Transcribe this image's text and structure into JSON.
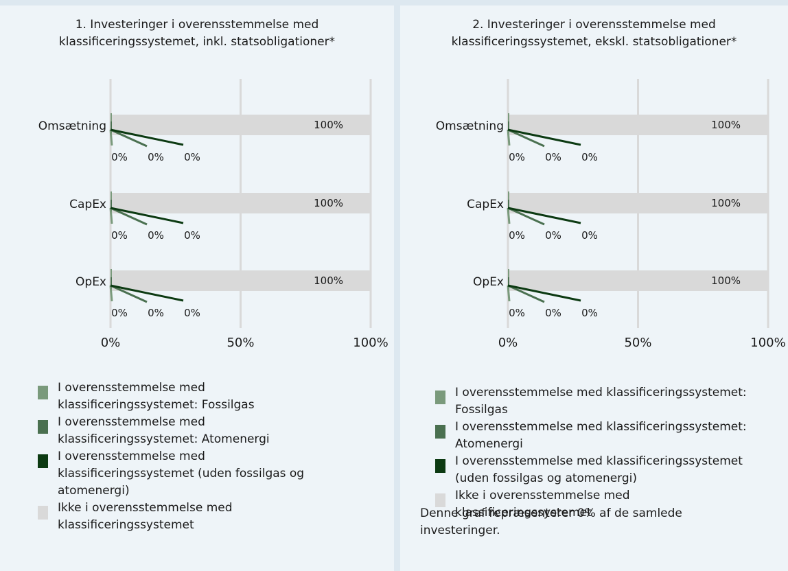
{
  "colors": {
    "fossil_gas": "#7a9a7c",
    "nuclear": "#4a7050",
    "aligned_excl": "#0c3a12",
    "not_aligned": "#d9d9d9",
    "grid": "#d9d9d9"
  },
  "chart_data": [
    {
      "type": "bar",
      "orientation": "horizontal",
      "title_lines": [
        "1. Investeringer i overensstemmelse med",
        "klassificeringssystemet, inkl. statsobligationer*"
      ],
      "categories": [
        "Omsætning",
        "CapEx",
        "OpEx"
      ],
      "series": [
        {
          "name": "I overensstemmelse med klassificeringssystemet: Fossilgas",
          "values": [
            0,
            0,
            0
          ],
          "labels": [
            "0%",
            "0%",
            "0%"
          ]
        },
        {
          "name": "I overensstemmelse med klassificeringssystemet: Atomenergi",
          "values": [
            0,
            0,
            0
          ],
          "labels": [
            "0%",
            "0%",
            "0%"
          ]
        },
        {
          "name": "I overensstemmelse med klassificeringssystemet (uden fossilgas og atomenergi)",
          "values": [
            0,
            0,
            0
          ],
          "labels": [
            "0%",
            "0%",
            "0%"
          ]
        },
        {
          "name": "Ikke i overensstemmelse med klassificeringssystemet",
          "values": [
            100,
            100,
            100
          ],
          "labels": [
            "100%",
            "100%",
            "100%"
          ]
        }
      ],
      "xlim": [
        0,
        100
      ],
      "xticks": [
        "0%",
        "50%",
        "100%"
      ],
      "legend_lines": [
        [
          "I overensstemmelse med",
          "klassificeringssystemet: Fossilgas"
        ],
        [
          "I overensstemmelse med",
          "klassificeringssystemet: Atomenergi"
        ],
        [
          "I overensstemmelse med",
          "klassificeringssystemet (uden fossilgas og",
          "atomenergi)"
        ],
        [
          "Ikke i overensstemmelse med",
          "klassificeringssystemet"
        ]
      ]
    },
    {
      "type": "bar",
      "orientation": "horizontal",
      "title_lines": [
        "2. Investeringer i overensstemmelse med",
        "klassificeringssystemet, ekskl. statsobligationer*"
      ],
      "categories": [
        "Omsætning",
        "CapEx",
        "OpEx"
      ],
      "series": [
        {
          "name": "I overensstemmelse med klassificeringssystemet: Fossilgas",
          "values": [
            0,
            0,
            0
          ],
          "labels": [
            "0%",
            "0%",
            "0%"
          ]
        },
        {
          "name": "I overensstemmelse med klassificeringssystemet: Atomenergi",
          "values": [
            0,
            0,
            0
          ],
          "labels": [
            "0%",
            "0%",
            "0%"
          ]
        },
        {
          "name": "I overensstemmelse med klassificeringssystemet (uden fossilgas og atomenergi)",
          "values": [
            0,
            0,
            0
          ],
          "labels": [
            "0%",
            "0%",
            "0%"
          ]
        },
        {
          "name": "Ikke i overensstemmelse med klassificeringssystemet",
          "values": [
            100,
            100,
            100
          ],
          "labels": [
            "100%",
            "100%",
            "100%"
          ]
        }
      ],
      "xlim": [
        0,
        100
      ],
      "xticks": [
        "0%",
        "50%",
        "100%"
      ],
      "legend_lines": [
        [
          "I overensstemmelse med klassificeringssystemet:",
          "Fossilgas"
        ],
        [
          "I overensstemmelse med klassificeringssystemet:",
          "Atomenergi"
        ],
        [
          "I overensstemmelse med klassificeringssystemet",
          "(uden fossilgas og atomenergi)"
        ],
        [
          "Ikke i overensstemmelse med",
          "klassificeringssystemet"
        ]
      ]
    }
  ],
  "footnote": "Denne graf repræsenterer 0% af de samlede investeringer."
}
